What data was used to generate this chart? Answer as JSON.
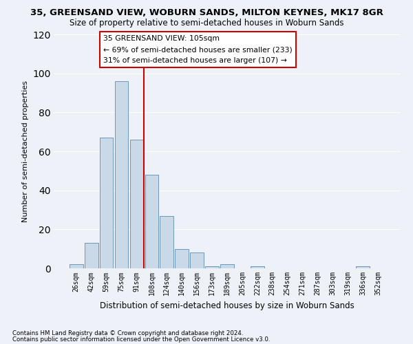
{
  "title": "35, GREENSAND VIEW, WOBURN SANDS, MILTON KEYNES, MK17 8GR",
  "subtitle": "Size of property relative to semi-detached houses in Woburn Sands",
  "xlabel": "Distribution of semi-detached houses by size in Woburn Sands",
  "ylabel": "Number of semi-detached properties",
  "categories": [
    "26sqm",
    "42sqm",
    "59sqm",
    "75sqm",
    "91sqm",
    "108sqm",
    "124sqm",
    "140sqm",
    "156sqm",
    "173sqm",
    "189sqm",
    "205sqm",
    "222sqm",
    "238sqm",
    "254sqm",
    "271sqm",
    "287sqm",
    "303sqm",
    "319sqm",
    "336sqm",
    "352sqm"
  ],
  "values": [
    2,
    13,
    67,
    96,
    66,
    48,
    27,
    10,
    8,
    1,
    2,
    0,
    1,
    0,
    0,
    0,
    0,
    0,
    0,
    1,
    0
  ],
  "bar_color": "#c9d9e8",
  "bar_edge_color": "#5a8ab0",
  "background_color": "#eef2f8",
  "grid_color": "#ffffff",
  "vline_color": "#cc0000",
  "annotation_title": "35 GREENSAND VIEW: 105sqm",
  "annotation_line1": "← 69% of semi-detached houses are smaller (233)",
  "annotation_line2": "31% of semi-detached houses are larger (107) →",
  "annotation_box_color": "#cc0000",
  "ylim": [
    0,
    120
  ],
  "yticks": [
    0,
    20,
    40,
    60,
    80,
    100,
    120
  ],
  "footnote1": "Contains HM Land Registry data © Crown copyright and database right 2024.",
  "footnote2": "Contains public sector information licensed under the Open Government Licence v3.0."
}
